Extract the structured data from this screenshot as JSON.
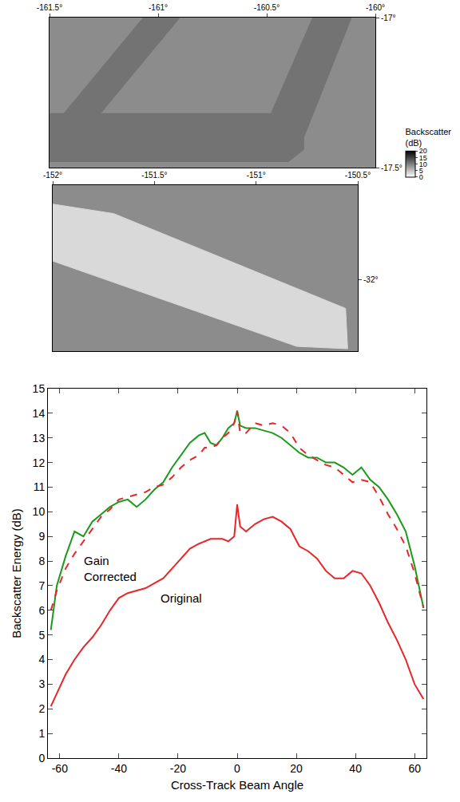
{
  "chart_data": [
    {
      "type": "map",
      "xlim": [
        -161.5,
        -160.0
      ],
      "ylim": [
        -17.5,
        -17.0
      ],
      "xticks": [
        {
          "value": -161.5,
          "label": "-161.5°"
        },
        {
          "value": -161.0,
          "label": "-161°"
        },
        {
          "value": -160.5,
          "label": "-160.5°"
        },
        {
          "value": -160.0,
          "label": "-160°"
        }
      ],
      "yticks": [
        {
          "value": -17.0,
          "label": "-17°"
        },
        {
          "value": -17.5,
          "label": "-17.5°"
        }
      ],
      "swaths": [
        {
          "lon": [
            -161.07,
            -160.9,
            -161.3,
            -161.47
          ],
          "lat": [
            -17.0,
            -17.0,
            -17.35,
            -17.35
          ],
          "value": 11
        },
        {
          "lon": [
            -161.5,
            -160.33,
            -160.33,
            -160.4,
            -161.5
          ],
          "lat": [
            -17.32,
            -17.32,
            -17.44,
            -17.48,
            -17.48
          ],
          "value": 11
        },
        {
          "lon": [
            -160.29,
            -160.11,
            -160.33,
            -160.5
          ],
          "lat": [
            -17.0,
            -17.0,
            -17.4,
            -17.35
          ],
          "value": 11
        }
      ],
      "colorbar": {
        "title": "Backscatter (dB)",
        "range": [
          0,
          20
        ],
        "ticks": [
          0,
          5,
          10,
          15,
          20
        ]
      }
    },
    {
      "type": "map",
      "xlim": [
        -152.0,
        -150.5
      ],
      "ylim": [
        -32.3,
        -31.6
      ],
      "xticks": [
        {
          "value": -152.0,
          "label": "-152°"
        },
        {
          "value": -151.5,
          "label": "-151.5°"
        },
        {
          "value": -151.0,
          "label": "-151°"
        },
        {
          "value": -150.5,
          "label": "-150.5°"
        }
      ],
      "yticks": [
        {
          "value": -32.0,
          "label": "-32°"
        }
      ],
      "swaths": [
        {
          "lon": [
            -152.0,
            -151.7,
            -150.56,
            -150.55,
            -150.8,
            -152.0
          ],
          "lat": [
            -31.68,
            -31.72,
            -32.12,
            -32.29,
            -32.28,
            -31.92
          ],
          "value": 3
        }
      ]
    },
    {
      "type": "line",
      "xlabel": "Cross-Track Beam Angle",
      "ylabel": "Backscatter Energy (dB)",
      "xlim": [
        -64,
        64
      ],
      "ylim": [
        0,
        15
      ],
      "xticks": [
        -60,
        -40,
        -20,
        0,
        20,
        40,
        60
      ],
      "yticks": [
        0,
        1,
        2,
        3,
        4,
        5,
        6,
        7,
        8,
        9,
        10,
        11,
        12,
        13,
        14,
        15
      ],
      "x": [
        -63,
        -61,
        -58,
        -55,
        -52,
        -49,
        -46,
        -43,
        -40,
        -37,
        -34,
        -31,
        -28,
        -25,
        -22,
        -19,
        -16,
        -13,
        -11,
        -9,
        -7,
        -5,
        -3,
        -1,
        0,
        1,
        3,
        6,
        9,
        12,
        15,
        18,
        21,
        24,
        27,
        30,
        33,
        36,
        39,
        42,
        45,
        48,
        51,
        54,
        57,
        60,
        63
      ],
      "series": [
        {
          "color": "#1a9a1a",
          "line_style": "solid",
          "values": [
            5.2,
            7.0,
            8.2,
            9.2,
            9.0,
            9.6,
            9.9,
            10.2,
            10.4,
            10.5,
            10.2,
            10.5,
            10.9,
            11.2,
            11.8,
            12.3,
            12.8,
            13.1,
            13.2,
            12.8,
            12.7,
            13.0,
            13.4,
            13.6,
            14.1,
            13.5,
            13.4,
            13.4,
            13.3,
            13.2,
            13.0,
            12.7,
            12.4,
            12.2,
            12.2,
            12.0,
            12.0,
            11.8,
            11.5,
            11.8,
            11.3,
            11.0,
            10.5,
            9.9,
            9.2,
            7.8,
            6.1
          ]
        },
        {
          "color": "#e8262a",
          "line_style": "dashed",
          "values": [
            6.0,
            6.8,
            7.7,
            8.3,
            8.8,
            9.3,
            9.8,
            10.1,
            10.5,
            10.6,
            10.7,
            10.8,
            11.0,
            11.1,
            11.4,
            11.8,
            12.1,
            12.3,
            12.6,
            12.6,
            12.7,
            13.0,
            13.2,
            13.6,
            14.1,
            13.2,
            13.2,
            13.6,
            13.5,
            13.6,
            13.5,
            13.2,
            12.6,
            12.3,
            12.1,
            11.9,
            11.8,
            11.5,
            11.2,
            11.3,
            11.2,
            10.6,
            9.9,
            9.3,
            8.6,
            7.5,
            6.1
          ]
        },
        {
          "color": "#e8262a",
          "line_style": "solid",
          "values": [
            2.1,
            2.6,
            3.4,
            4.0,
            4.5,
            4.9,
            5.4,
            6.0,
            6.5,
            6.7,
            6.8,
            6.9,
            7.1,
            7.3,
            7.7,
            8.1,
            8.5,
            8.7,
            8.8,
            8.9,
            8.9,
            8.9,
            8.8,
            9.0,
            10.3,
            9.4,
            9.2,
            9.5,
            9.7,
            9.8,
            9.6,
            9.3,
            8.6,
            8.4,
            8.1,
            7.6,
            7.3,
            7.3,
            7.6,
            7.5,
            7.0,
            6.3,
            5.5,
            4.8,
            4.0,
            3.0,
            2.4
          ]
        }
      ],
      "annotations": [
        {
          "text": "Gain Corrected",
          "x": -43,
          "y": 7.7
        },
        {
          "text": "Original",
          "x": -19,
          "y": 6.5
        }
      ]
    }
  ]
}
